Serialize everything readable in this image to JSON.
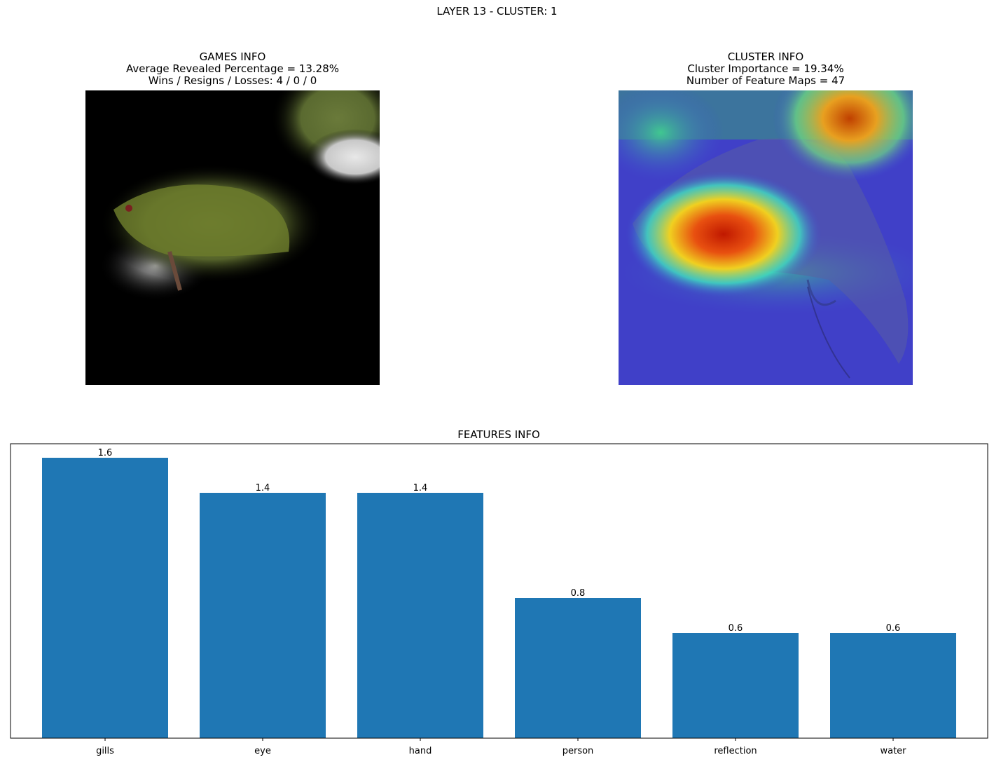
{
  "suptitle": "LAYER 13 - CLUSTER: 1",
  "games_panel": {
    "title": "GAMES INFO",
    "line1": "Average Revealed Percentage = 13.28%",
    "line2": "Wins / Resigns / Losses: 4 / 0 / 0"
  },
  "cluster_panel": {
    "title": "CLUSTER INFO",
    "line1": "Cluster Importance = 19.34%",
    "line2": "Number of Feature Maps = 47"
  },
  "chart_data": {
    "type": "bar",
    "title": "FEATURES INFO",
    "categories": [
      "gills",
      "eye",
      "hand",
      "person",
      "reflection",
      "water"
    ],
    "values": [
      1.6,
      1.4,
      1.4,
      0.8,
      0.6,
      0.6
    ],
    "value_labels": [
      "1.6",
      "1.4",
      "1.4",
      "0.8",
      "0.6",
      "0.6"
    ],
    "xlabel": "",
    "ylabel": "",
    "ylim": [
      0,
      1.68
    ],
    "bar_color": "#1f77b4",
    "grid": false
  }
}
